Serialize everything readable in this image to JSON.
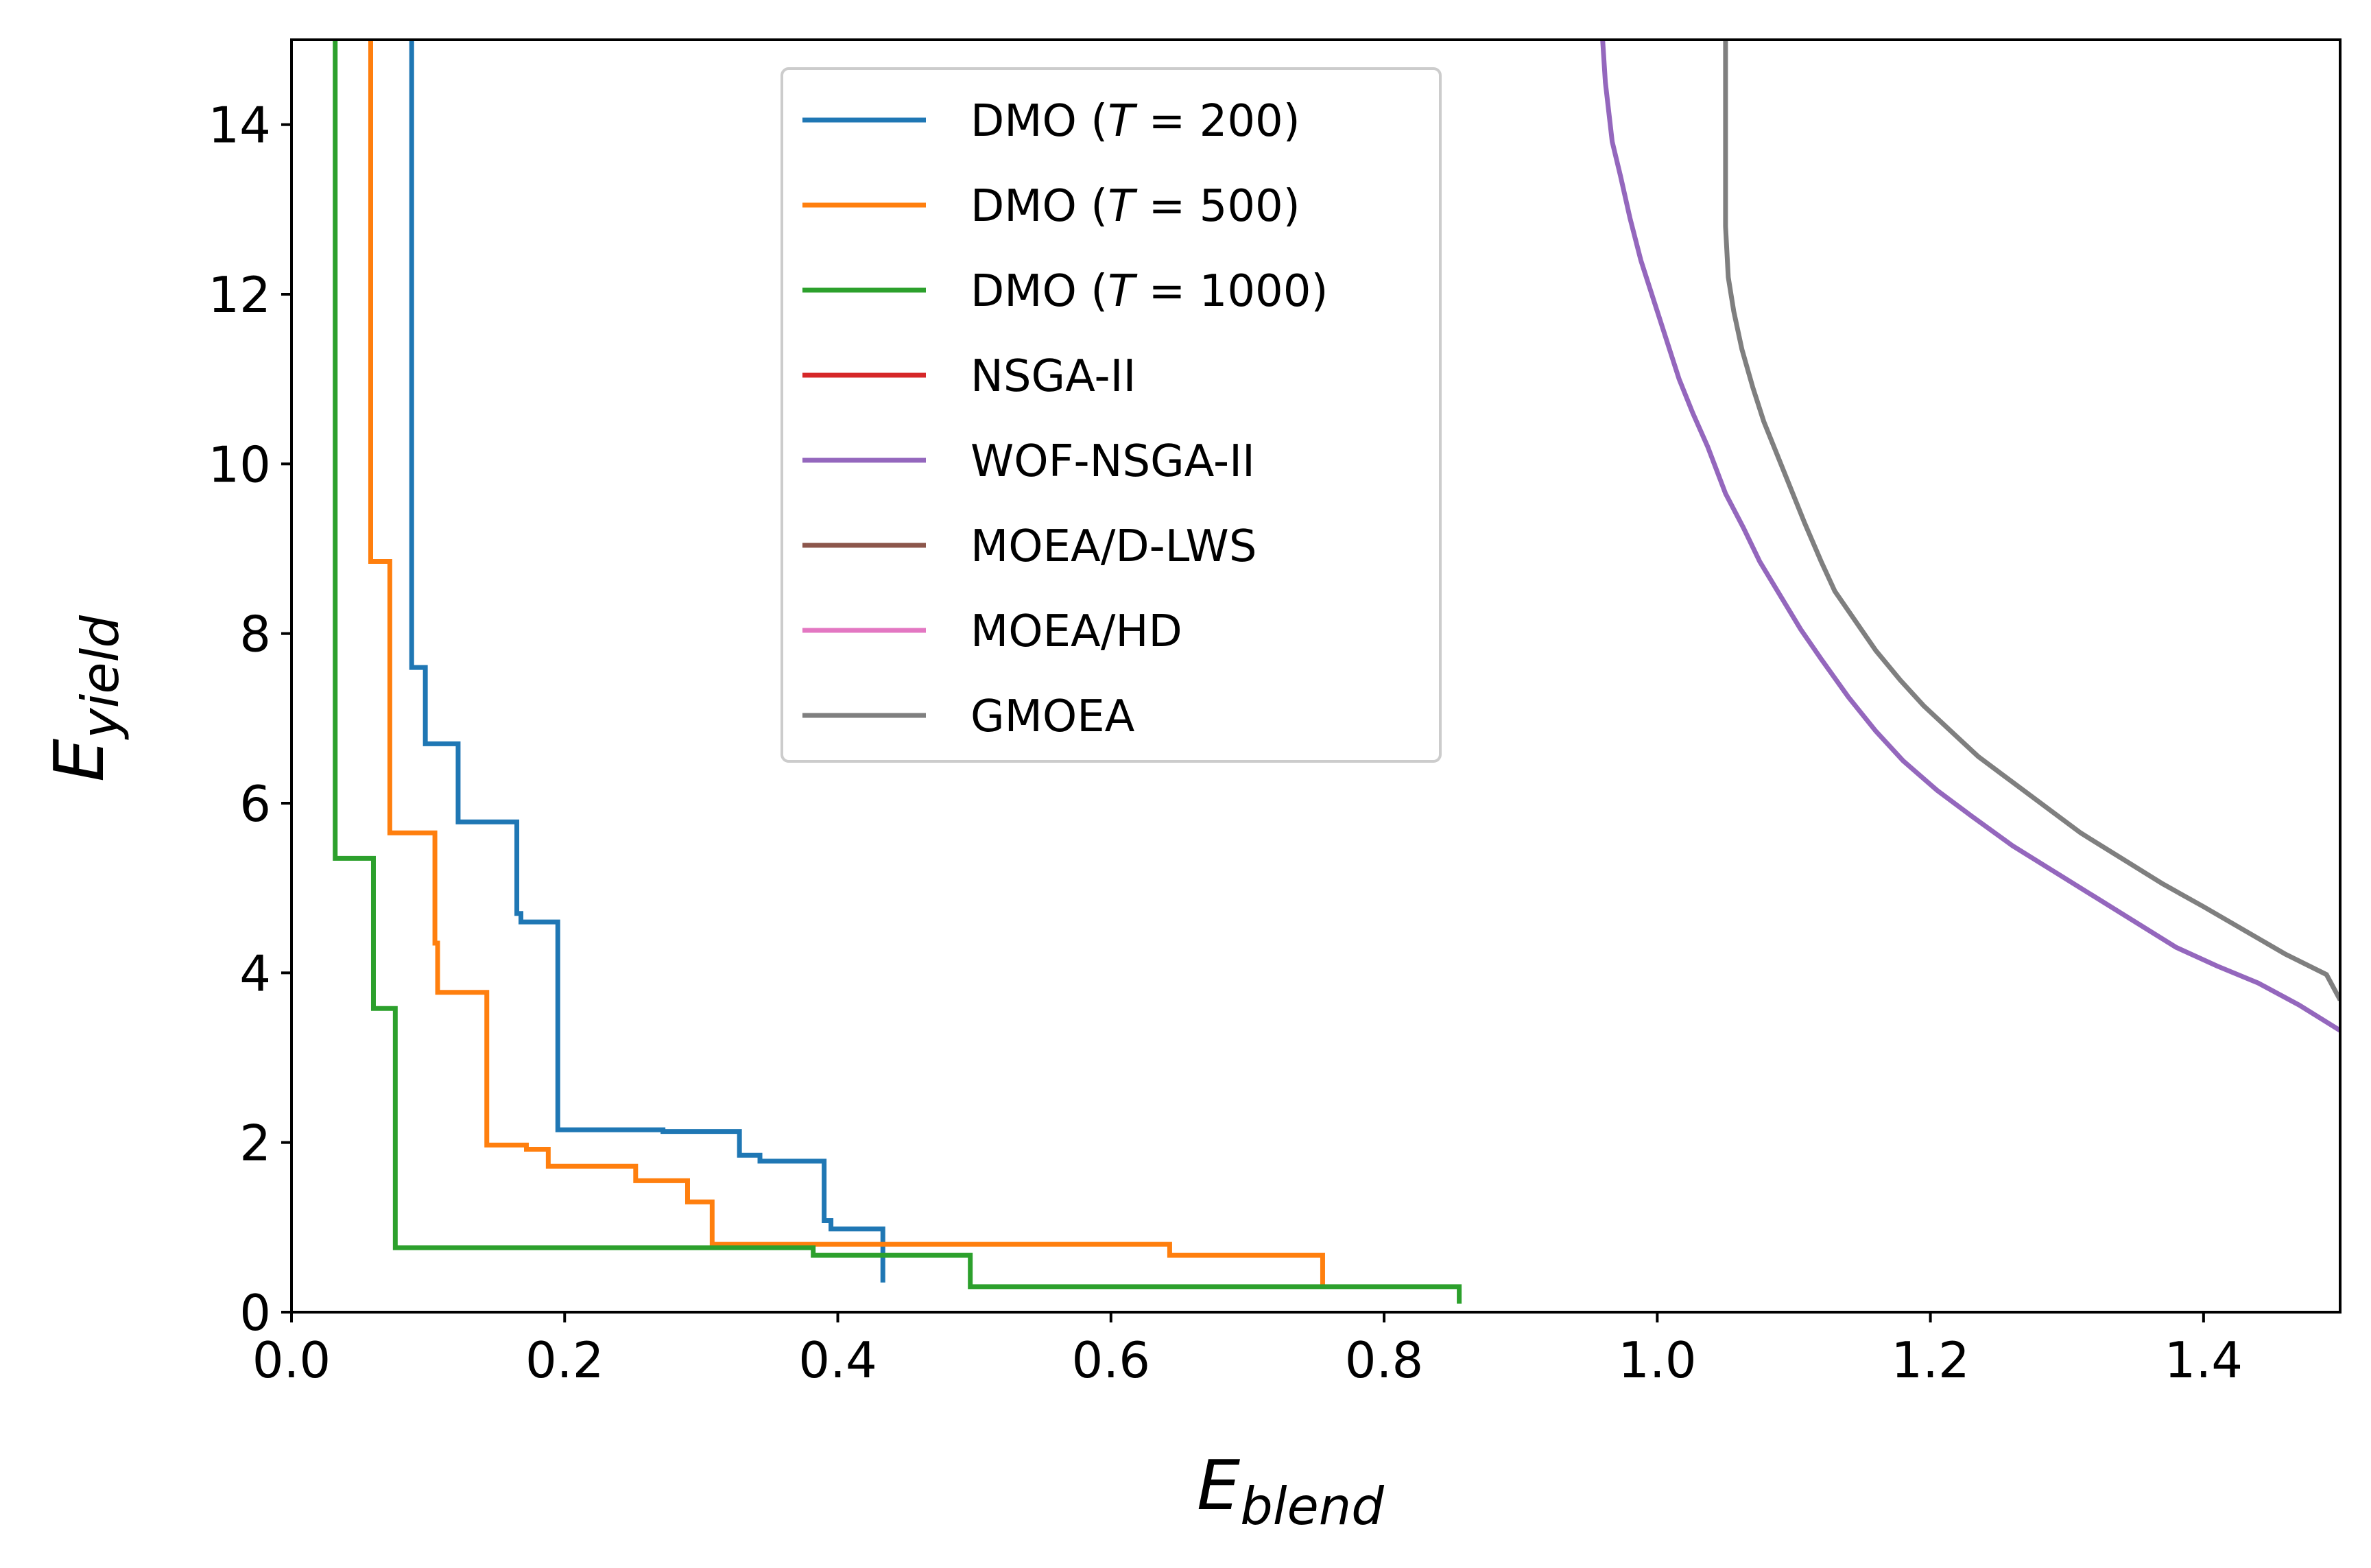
{
  "chart_data": {
    "type": "line",
    "title": "",
    "xlabel": {
      "main": "E",
      "sub": "blend"
    },
    "ylabel": {
      "main": "E",
      "sub": "yield"
    },
    "xlim": [
      0.0,
      1.5
    ],
    "ylim": [
      0,
      15
    ],
    "xticks": [
      0.0,
      0.2,
      0.4,
      0.6,
      0.8,
      1.0,
      1.2,
      1.4
    ],
    "xtick_labels": [
      "0.0",
      "0.2",
      "0.4",
      "0.6",
      "0.8",
      "1.0",
      "1.2",
      "1.4"
    ],
    "yticks": [
      0,
      2,
      4,
      6,
      8,
      10,
      12,
      14
    ],
    "ytick_labels": [
      "0",
      "2",
      "4",
      "6",
      "8",
      "10",
      "12",
      "14"
    ],
    "grid": false,
    "legend_position": "top-center",
    "series": [
      {
        "name": "DMO (T = 200)",
        "legend": {
          "pre": "DMO (",
          "var": "T",
          "post": " = 200)"
        },
        "color": "#1f77b4",
        "step": true,
        "points": [
          [
            0.088,
            15.0
          ],
          [
            0.088,
            7.6
          ],
          [
            0.098,
            6.7
          ],
          [
            0.122,
            5.78
          ],
          [
            0.165,
            4.7
          ],
          [
            0.168,
            4.6
          ],
          [
            0.195,
            2.15
          ],
          [
            0.272,
            2.13
          ],
          [
            0.328,
            1.85
          ],
          [
            0.343,
            1.78
          ],
          [
            0.39,
            1.08
          ],
          [
            0.395,
            0.98
          ],
          [
            0.433,
            0.35
          ]
        ]
      },
      {
        "name": "DMO (T = 500)",
        "legend": {
          "pre": "DMO (",
          "var": "T",
          "post": " = 500)"
        },
        "color": "#ff7f0e",
        "step": true,
        "points": [
          [
            0.058,
            15.0
          ],
          [
            0.058,
            8.85
          ],
          [
            0.072,
            5.65
          ],
          [
            0.105,
            4.35
          ],
          [
            0.107,
            3.77
          ],
          [
            0.143,
            1.97
          ],
          [
            0.172,
            1.92
          ],
          [
            0.188,
            1.72
          ],
          [
            0.252,
            1.55
          ],
          [
            0.29,
            1.3
          ],
          [
            0.308,
            0.8
          ],
          [
            0.643,
            0.67
          ],
          [
            0.755,
            0.3
          ]
        ]
      },
      {
        "name": "DMO (T = 1000)",
        "legend": {
          "pre": "DMO (",
          "var": "T",
          "post": " = 1000)"
        },
        "color": "#2ca02c",
        "step": true,
        "points": [
          [
            0.032,
            15.0
          ],
          [
            0.032,
            5.35
          ],
          [
            0.06,
            3.58
          ],
          [
            0.076,
            0.76
          ],
          [
            0.382,
            0.67
          ],
          [
            0.497,
            0.3
          ],
          [
            0.855,
            0.1
          ]
        ]
      },
      {
        "name": "NSGA-II",
        "legend": {
          "pre": "NSGA-II",
          "var": "",
          "post": ""
        },
        "color": "#d62728",
        "step": false,
        "points": []
      },
      {
        "name": "WOF-NSGA-II",
        "legend": {
          "pre": "WOF-NSGA-II",
          "var": "",
          "post": ""
        },
        "color": "#9467bd",
        "step": false,
        "points": [
          [
            0.96,
            15.0
          ],
          [
            0.962,
            14.5
          ],
          [
            0.967,
            13.8
          ],
          [
            0.973,
            13.4
          ],
          [
            0.98,
            12.9
          ],
          [
            0.988,
            12.4
          ],
          [
            0.996,
            12.0
          ],
          [
            1.006,
            11.5
          ],
          [
            1.016,
            11.0
          ],
          [
            1.026,
            10.6
          ],
          [
            1.037,
            10.2
          ],
          [
            1.05,
            9.65
          ],
          [
            1.063,
            9.25
          ],
          [
            1.075,
            8.85
          ],
          [
            1.09,
            8.45
          ],
          [
            1.105,
            8.05
          ],
          [
            1.12,
            7.7
          ],
          [
            1.14,
            7.25
          ],
          [
            1.16,
            6.85
          ],
          [
            1.18,
            6.5
          ],
          [
            1.205,
            6.15
          ],
          [
            1.23,
            5.85
          ],
          [
            1.26,
            5.5
          ],
          [
            1.29,
            5.2
          ],
          [
            1.32,
            4.9
          ],
          [
            1.35,
            4.6
          ],
          [
            1.38,
            4.3
          ],
          [
            1.41,
            4.08
          ],
          [
            1.44,
            3.88
          ],
          [
            1.47,
            3.62
          ],
          [
            1.5,
            3.32
          ]
        ]
      },
      {
        "name": "MOEA/D-LWS",
        "legend": {
          "pre": "MOEA/D-LWS",
          "var": "",
          "post": ""
        },
        "color": "#8c564b",
        "step": false,
        "points": []
      },
      {
        "name": "MOEA/HD",
        "legend": {
          "pre": "MOEA/HD",
          "var": "",
          "post": ""
        },
        "color": "#e377c2",
        "step": false,
        "points": []
      },
      {
        "name": "GMOEA",
        "legend": {
          "pre": "GMOEA",
          "var": "",
          "post": ""
        },
        "color": "#7f7f7f",
        "step": false,
        "points": [
          [
            1.05,
            15.0
          ],
          [
            1.05,
            12.8
          ],
          [
            1.052,
            12.2
          ],
          [
            1.056,
            11.8
          ],
          [
            1.062,
            11.35
          ],
          [
            1.07,
            10.9
          ],
          [
            1.078,
            10.5
          ],
          [
            1.088,
            10.1
          ],
          [
            1.098,
            9.7
          ],
          [
            1.108,
            9.3
          ],
          [
            1.12,
            8.85
          ],
          [
            1.13,
            8.5
          ],
          [
            1.145,
            8.15
          ],
          [
            1.16,
            7.8
          ],
          [
            1.178,
            7.45
          ],
          [
            1.195,
            7.15
          ],
          [
            1.215,
            6.85
          ],
          [
            1.235,
            6.55
          ],
          [
            1.26,
            6.25
          ],
          [
            1.285,
            5.95
          ],
          [
            1.31,
            5.65
          ],
          [
            1.34,
            5.35
          ],
          [
            1.37,
            5.05
          ],
          [
            1.4,
            4.78
          ],
          [
            1.43,
            4.5
          ],
          [
            1.46,
            4.22
          ],
          [
            1.49,
            3.98
          ],
          [
            1.5,
            3.68
          ]
        ]
      }
    ]
  }
}
